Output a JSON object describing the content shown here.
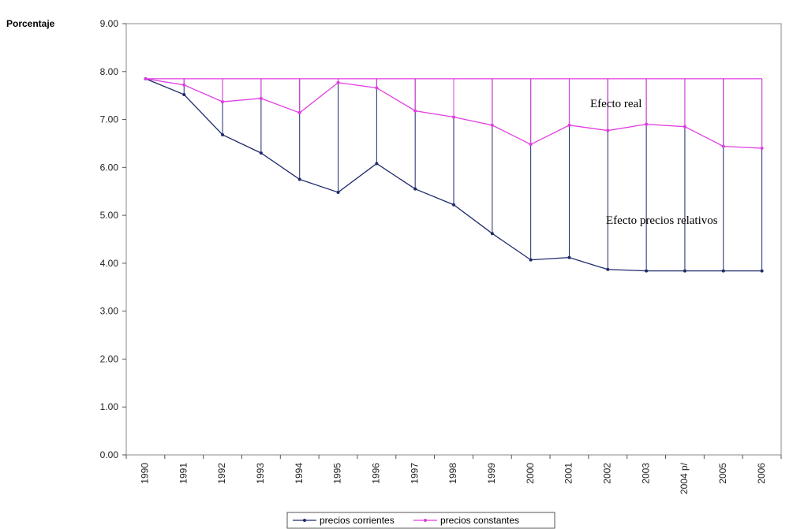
{
  "chart_data": {
    "type": "line",
    "title": "",
    "ylabel": "Porcentaje",
    "ylim": [
      0,
      9
    ],
    "ytick_labels": [
      "0.00",
      "1.00",
      "2.00",
      "3.00",
      "4.00",
      "5.00",
      "6.00",
      "7.00",
      "8.00",
      "9.00"
    ],
    "categories": [
      "1990",
      "1991",
      "1992",
      "1993",
      "1994",
      "1995",
      "1996",
      "1997",
      "1998",
      "1999",
      "2000",
      "2001",
      "2002",
      "2003",
      "2004 p/",
      "2005",
      "2006"
    ],
    "baseline": 7.85,
    "series": [
      {
        "name": "precios corrientes",
        "color": "#1f2a6b",
        "values": [
          7.85,
          7.52,
          6.68,
          6.3,
          5.75,
          5.48,
          6.08,
          5.55,
          5.22,
          4.62,
          4.07,
          4.12,
          3.87,
          3.84,
          3.84,
          3.84,
          3.84
        ]
      },
      {
        "name": "precios constantes",
        "color": "#e03ce0",
        "values": [
          7.85,
          7.72,
          7.37,
          7.44,
          7.14,
          7.77,
          7.66,
          7.18,
          7.05,
          6.88,
          6.48,
          6.88,
          6.77,
          6.9,
          6.85,
          6.44,
          6.4
        ]
      }
    ],
    "annotations": [
      "Efecto real",
      "Efecto precios relativos"
    ],
    "legend_position": "bottom",
    "grid": false
  }
}
